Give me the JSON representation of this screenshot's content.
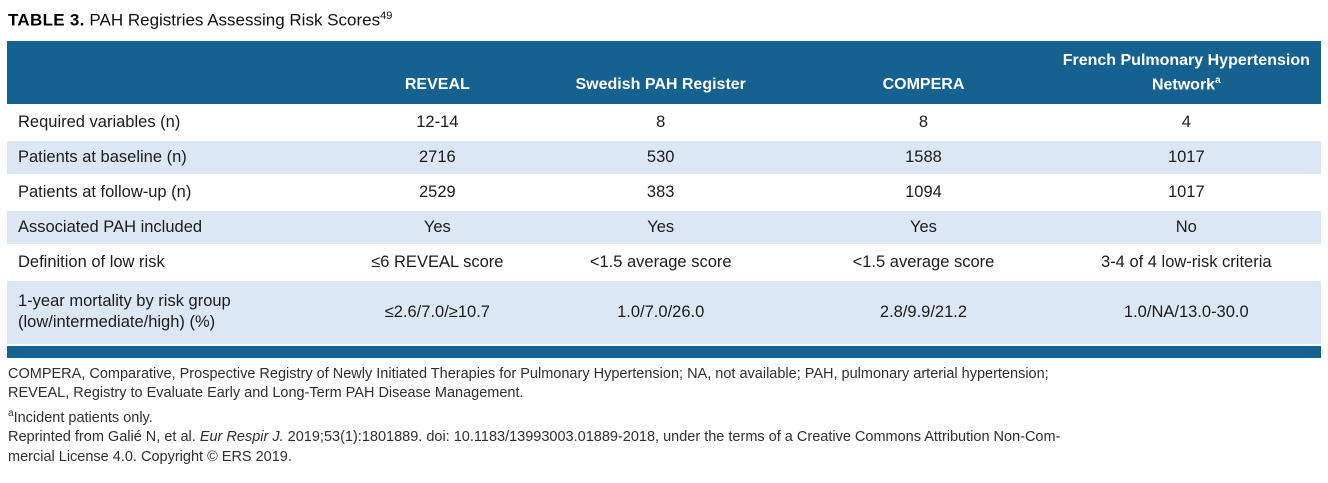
{
  "title": {
    "label": "TABLE 3.",
    "text": " PAH Registries Assessing Risk Scores",
    "superscript": "49"
  },
  "colors": {
    "header_blue": "#15618f",
    "stripe_blue": "#dbe7f4",
    "footnote_text": "#2f2f2f"
  },
  "table": {
    "columns": [
      {
        "label": "REVEAL",
        "sup": ""
      },
      {
        "label": "Swedish PAH Register",
        "sup": ""
      },
      {
        "label": "COMPERA",
        "sup": ""
      },
      {
        "label": "French Pulmonary Hypertension Network",
        "sup": "a"
      }
    ],
    "rows": [
      {
        "label": "Required variables (n)",
        "values": [
          "12-14",
          "8",
          "8",
          "4"
        ]
      },
      {
        "label": "Patients at baseline (n)",
        "values": [
          "2716",
          "530",
          "1588",
          "1017"
        ]
      },
      {
        "label": "Patients at follow-up (n)",
        "values": [
          "2529",
          "383",
          "1094",
          "1017"
        ]
      },
      {
        "label": "Associated PAH included",
        "values": [
          "Yes",
          "Yes",
          "Yes",
          "No"
        ]
      },
      {
        "label": "Definition of low risk",
        "values": [
          "≤6 REVEAL score",
          "<1.5 average score",
          "<1.5 average score",
          "3-4 of 4 low-risk criteria"
        ]
      },
      {
        "label": "1-year mortality by risk group (low/intermediate/high) (%)",
        "values": [
          "≤2.6/7.0/≥10.7",
          "1.0/7.0/26.0",
          "2.8/9.9/21.2",
          "1.0/NA/13.0-30.0"
        ]
      }
    ]
  },
  "footnotes": [
    [
      {
        "text": "COMPERA, Comparative, Prospective Registry of Newly Initiated Therapies for Pulmonary Hypertension; NA, not available; PAH, pulmonary arterial hypertension;"
      }
    ],
    [
      {
        "text": "REVEAL, Registry to Evaluate Early and Long-Term PAH Disease Management."
      }
    ],
    [
      {
        "text": "a",
        "sup": true
      },
      {
        "text": "Incident patients only."
      }
    ],
    [
      {
        "text": "Reprinted from Galié N, et al. "
      },
      {
        "text": "Eur Respir J.",
        "italic": true
      },
      {
        "text": " 2019;53(1):1801889. doi: 10.1183/13993003.01889-2018, under the terms of a Creative Commons Attribution Non-Com-"
      }
    ],
    [
      {
        "text": "mercial License 4.0. Copyright © ERS 2019."
      }
    ]
  ]
}
